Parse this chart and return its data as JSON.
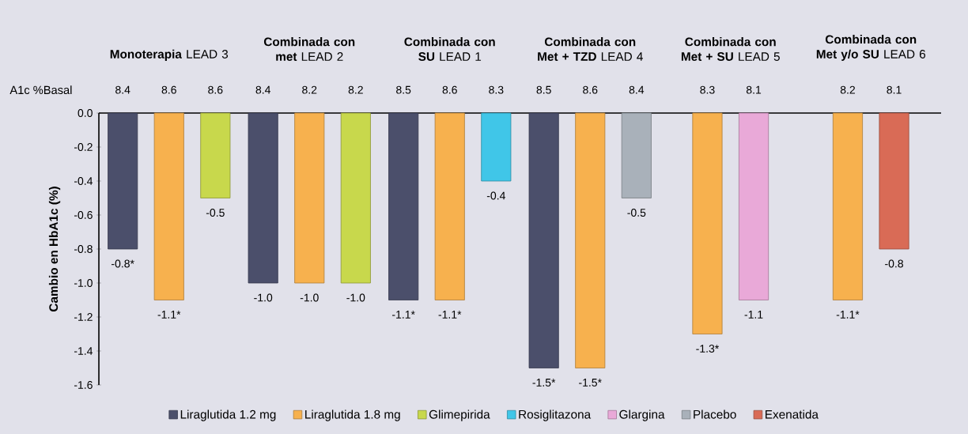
{
  "chart_data": {
    "type": "bar",
    "categories": [
      "**Monoterapia** LEAD 3",
      "**Combinada con met** LEAD 2",
      "**Combinada con SU** LEAD 1",
      "**Combinada con Met + TZD** LEAD 4",
      "**Combinada con Met + SU** LEAD 5",
      "**Combinada con Met y/o SU** LEAD 6"
    ],
    "ylabel": "Cambio en HbA1c (%)",
    "ylim": [
      -1.6,
      0
    ],
    "yticks": [
      {
        "value": 0,
        "label": "0.0"
      },
      -0.2,
      -0.4,
      -0.6,
      -0.8,
      {
        "value": -1.0,
        "label": "-1.0"
      },
      -1.2,
      -1.4,
      -1.6
    ],
    "series": [
      {
        "name": "Liraglutida 1.2 mg",
        "color": "#4b4f6b",
        "values": [
          -0.8,
          -1.0,
          -1.1,
          -1.5,
          null,
          null
        ],
        "value_labels": [
          "-0.8*",
          "-1.0",
          "-1.1*",
          "-1.5*",
          null,
          null
        ]
      },
      {
        "name": "Liraglutida 1.8 mg",
        "color": "#f7b14e",
        "values": [
          -1.1,
          -1.0,
          -1.1,
          -1.5,
          -1.3,
          -1.1
        ],
        "value_labels": [
          "-1.1*",
          "-1.0",
          "-1.1*",
          "-1.5*",
          "-1.3*",
          "-1.1*"
        ]
      },
      {
        "name": "Glimepirida",
        "color": "#c8d84c",
        "values": [
          -0.5,
          -1.0,
          null,
          null,
          null,
          null
        ],
        "value_labels": [
          "-0.5",
          "-1.0",
          null,
          null,
          null,
          null
        ]
      },
      {
        "name": "Rosiglitazona",
        "color": "#40c6e8",
        "values": [
          null,
          null,
          -0.4,
          null,
          null,
          null
        ],
        "value_labels": [
          null,
          null,
          "-0.4",
          null,
          null,
          null
        ]
      },
      {
        "name": "Glargina",
        "color": "#e9a9d8",
        "values": [
          null,
          null,
          null,
          null,
          -1.1,
          null
        ],
        "value_labels": [
          null,
          null,
          null,
          null,
          "-1.1",
          null
        ]
      },
      {
        "name": "Placebo",
        "color": "#a9b1ba",
        "values": [
          null,
          null,
          null,
          -0.5,
          null,
          null
        ],
        "value_labels": [
          null,
          null,
          null,
          "-0.5",
          null,
          null
        ]
      },
      {
        "name": "Exenatida",
        "color": "#d96b56",
        "values": [
          null,
          null,
          null,
          null,
          null,
          -0.8
        ],
        "value_labels": [
          null,
          null,
          null,
          null,
          null,
          "-0.8"
        ]
      }
    ],
    "annotations": [
      "A1c %Basal",
      "8.4",
      "8.6",
      "8.6",
      "8.4",
      "8.2",
      "8.2",
      "8.5",
      "8.6",
      "8.3",
      "8.5",
      "8.6",
      "8.4",
      "8.3",
      "8.1",
      "8.2",
      "8.1"
    ],
    "legend": "bottom",
    "grid": false
  }
}
